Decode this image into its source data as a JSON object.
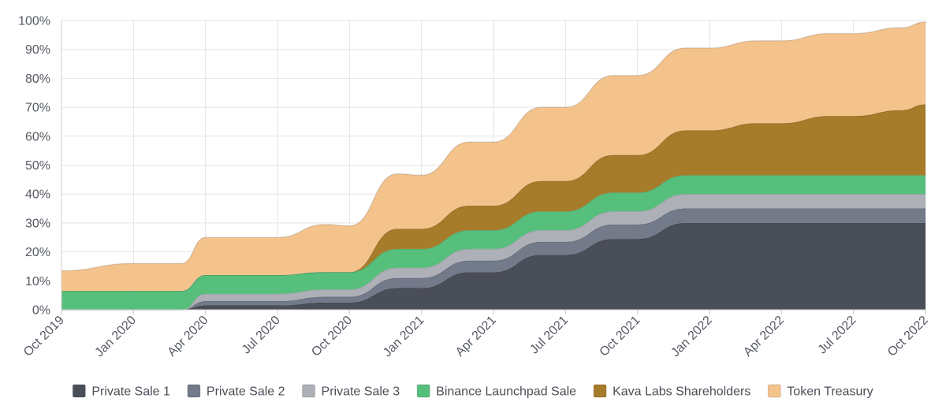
{
  "chart_data": {
    "type": "area",
    "stacked": true,
    "title": "",
    "xlabel": "",
    "ylabel": "",
    "ylim": [
      0,
      100
    ],
    "y_ticks": [
      "0%",
      "10%",
      "20%",
      "30%",
      "40%",
      "50%",
      "60%",
      "70%",
      "80%",
      "90%",
      "100%"
    ],
    "x_ticks": [
      "Oct 2019",
      "Jan 2020",
      "Apr 2020",
      "Jul 2020",
      "Oct 2020",
      "Jan 2021",
      "Apr 2021",
      "Jul 2021",
      "Oct 2021",
      "Jan 2022",
      "Apr 2022",
      "Jul 2022",
      "Oct 2022"
    ],
    "months_from_start": [
      0,
      3,
      5,
      6,
      9,
      11,
      12,
      14,
      15,
      17,
      18,
      20,
      21,
      23,
      24,
      26,
      27,
      29,
      30,
      32,
      33,
      35,
      36
    ],
    "legend_position": "bottom",
    "series": [
      {
        "name": "Private Sale 1",
        "color": "#4a4e58",
        "values": [
          0,
          0,
          0,
          1.5,
          1.5,
          2.5,
          2.5,
          7.5,
          7.5,
          13,
          13,
          19,
          19,
          24.5,
          24.5,
          30,
          30,
          30,
          30,
          30,
          30,
          30,
          30
        ]
      },
      {
        "name": "Private Sale 2",
        "color": "#737a89",
        "values": [
          0,
          0,
          0,
          1.5,
          1.5,
          2,
          2,
          3.5,
          3.5,
          4,
          4,
          4.5,
          4.5,
          5,
          5,
          5,
          5,
          5,
          5,
          5,
          5,
          5,
          5
        ]
      },
      {
        "name": "Private Sale 3",
        "color": "#aeb0b8",
        "values": [
          0,
          0,
          0,
          2.5,
          2.5,
          2.5,
          2.5,
          3.5,
          3.5,
          4,
          4,
          4,
          4,
          4.5,
          4.5,
          5,
          5,
          5,
          5,
          5,
          5,
          5,
          5
        ]
      },
      {
        "name": "Binance Launchpad Sale",
        "color": "#56bf7c",
        "values": [
          6.5,
          6.5,
          6.5,
          6.5,
          6.5,
          6,
          6,
          6.5,
          6.5,
          6.5,
          6.5,
          6.5,
          6.5,
          6.5,
          6.5,
          6.5,
          6.5,
          6.5,
          6.5,
          6.5,
          6.5,
          6.5,
          6.5
        ]
      },
      {
        "name": "Kava Labs Shareholders",
        "color": "#a67c2a",
        "values": [
          0,
          0,
          0,
          0,
          0,
          0,
          0,
          7,
          7,
          8.5,
          8.5,
          10.5,
          10.5,
          13,
          13,
          15.5,
          15.5,
          18,
          18,
          20.5,
          20.5,
          22.5,
          24.5
        ]
      },
      {
        "name": "Token Treasury",
        "color": "#f4c38c",
        "values": [
          7,
          9.5,
          9.5,
          13,
          13,
          16.5,
          16,
          19,
          18.5,
          22,
          22,
          25.5,
          25.5,
          27.5,
          27.5,
          28.5,
          28.5,
          28.5,
          28.5,
          28.5,
          28.5,
          28.5,
          28.5
        ]
      }
    ]
  }
}
